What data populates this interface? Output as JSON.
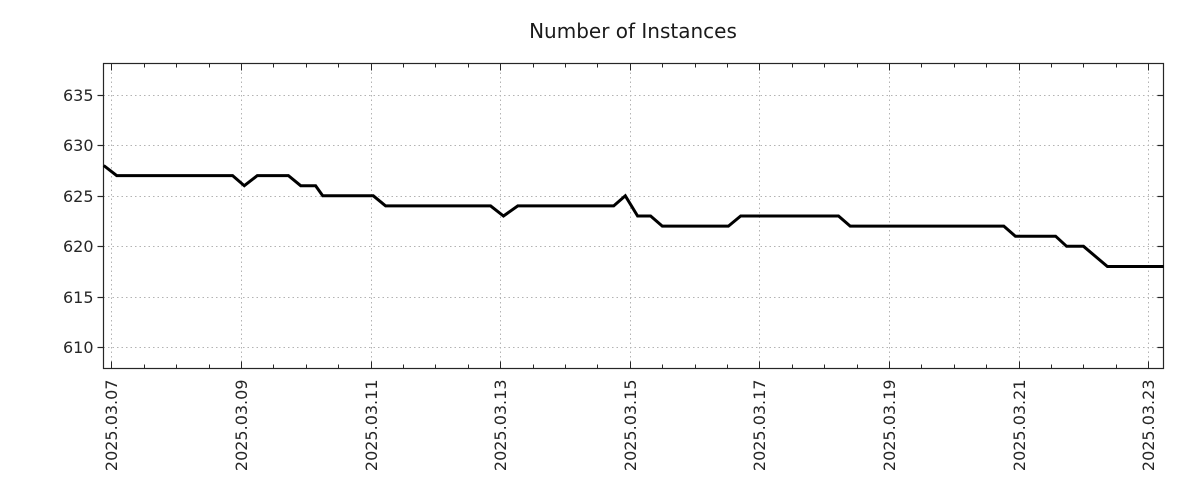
{
  "colors": {
    "background": "#ffffff",
    "line": "#000000",
    "grid": "#b3b3b3",
    "axis": "#262626",
    "text": "#262626",
    "title_text": "#1a1a1a"
  },
  "chart_data": {
    "type": "line",
    "title": "Number of Instances",
    "xlabel": "",
    "ylabel": "",
    "legend": "none",
    "grid": "dotted-both",
    "x_unit": "days since 2025-03-07 00:00",
    "xlim": [
      -0.123,
      16.235
    ],
    "ylim": [
      607.9,
      638.1
    ],
    "x_tick_days": [
      0,
      2,
      4,
      6,
      8,
      10,
      12,
      14,
      16
    ],
    "x_tick_labels": [
      "2025.03.07",
      "2025.03.09",
      "2025.03.11",
      "2025.03.13",
      "2025.03.15",
      "2025.03.17",
      "2025.03.19",
      "2025.03.21",
      "2025.03.23"
    ],
    "x_minor_step_days": 0.5,
    "y_ticks": [
      610,
      615,
      620,
      625,
      630,
      635
    ],
    "y_tick_labels": [
      "610",
      "615",
      "620",
      "625",
      "630",
      "635"
    ],
    "series": [
      {
        "name": "instances",
        "points": [
          [
            -0.12,
            628
          ],
          [
            0.08,
            627
          ],
          [
            1.87,
            627
          ],
          [
            2.05,
            626
          ],
          [
            2.25,
            627
          ],
          [
            2.73,
            627
          ],
          [
            2.92,
            626
          ],
          [
            3.15,
            626
          ],
          [
            3.26,
            625
          ],
          [
            4.04,
            625
          ],
          [
            4.23,
            624
          ],
          [
            5.85,
            624
          ],
          [
            6.05,
            623
          ],
          [
            6.27,
            624
          ],
          [
            7.75,
            624
          ],
          [
            7.93,
            625
          ],
          [
            8.12,
            623
          ],
          [
            8.32,
            623
          ],
          [
            8.5,
            622
          ],
          [
            9.52,
            622
          ],
          [
            9.71,
            623
          ],
          [
            11.22,
            623
          ],
          [
            11.4,
            622
          ],
          [
            13.77,
            622
          ],
          [
            13.95,
            621
          ],
          [
            14.57,
            621
          ],
          [
            14.74,
            620
          ],
          [
            15.0,
            620
          ],
          [
            15.37,
            618
          ],
          [
            16.24,
            618
          ]
        ]
      }
    ]
  }
}
